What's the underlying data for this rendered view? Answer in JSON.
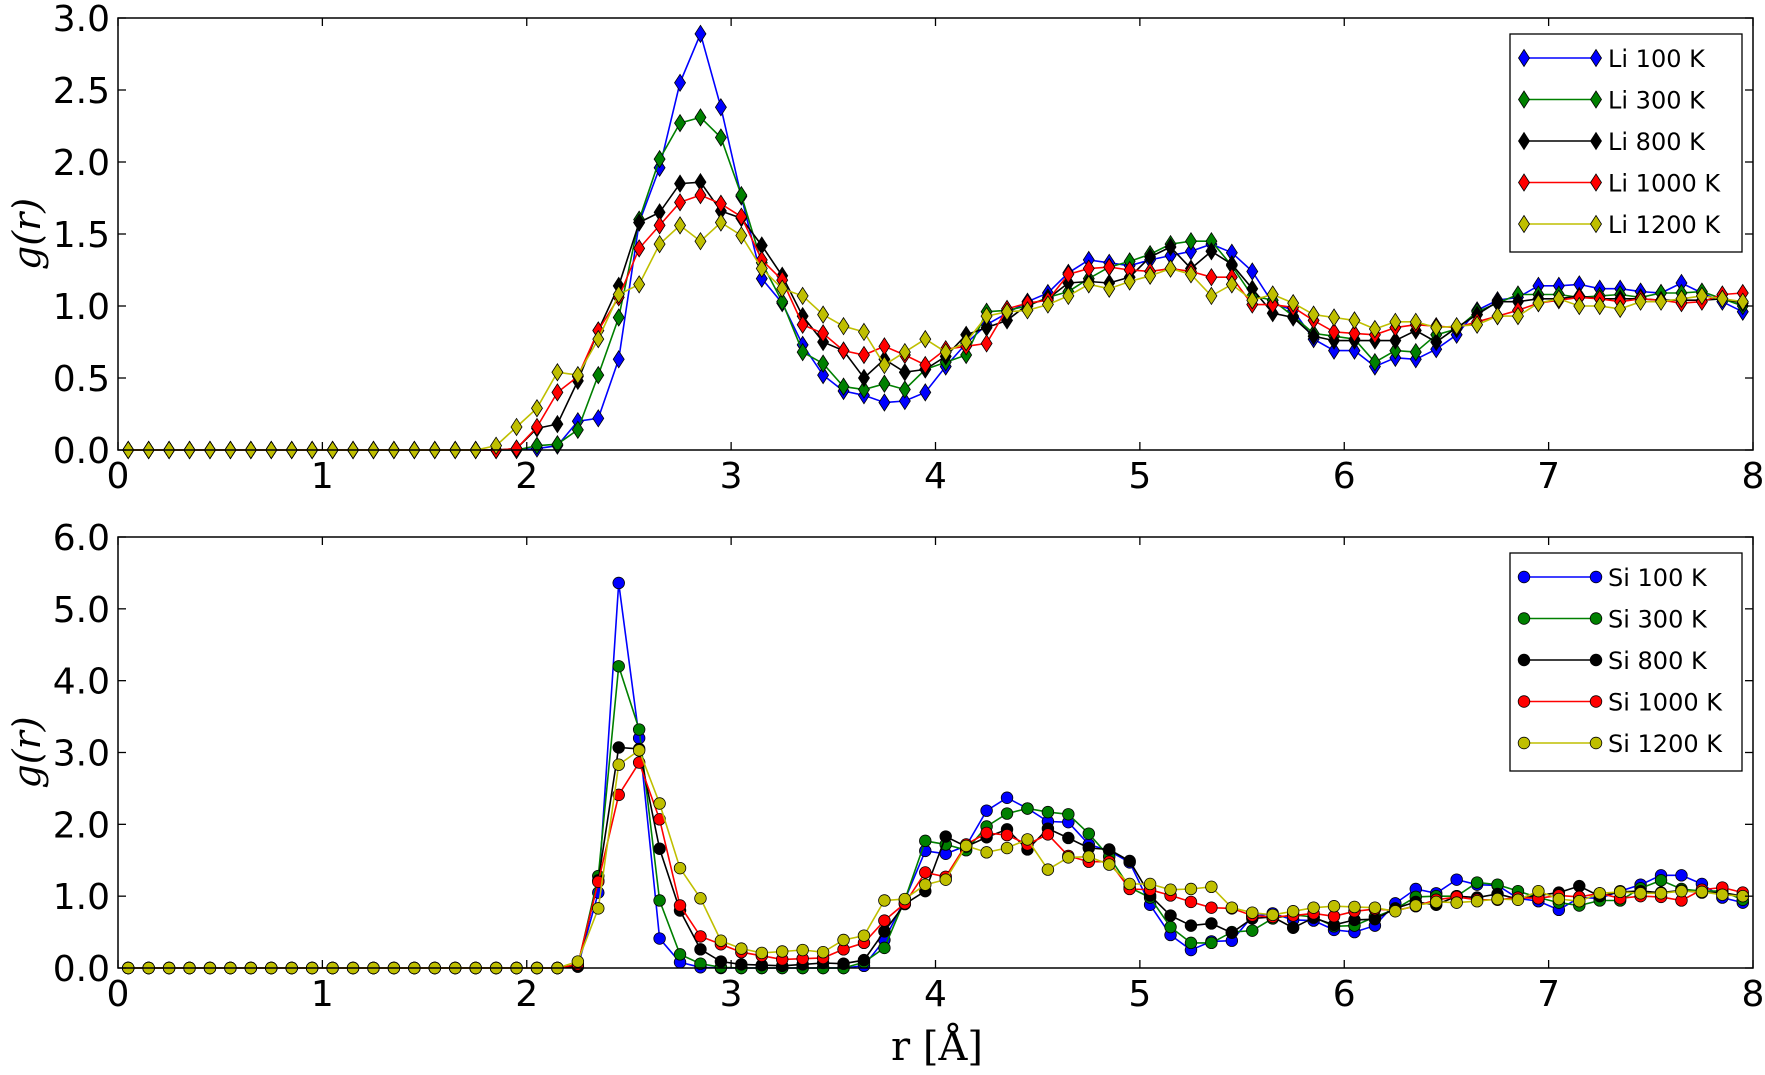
{
  "chart_data": [
    {
      "type": "line",
      "marker": "diamond",
      "xlabel": "",
      "ylabel": "g(r)",
      "xlim": [
        0,
        8
      ],
      "ylim": [
        0,
        3.0
      ],
      "xticks": [
        "0",
        "1",
        "2",
        "3",
        "4",
        "5",
        "6",
        "7",
        "8"
      ],
      "yticks": [
        "0.0",
        "0.5",
        "1.0",
        "1.5",
        "2.0",
        "2.5",
        "3.0"
      ],
      "grid": false,
      "legend_position": "top-right",
      "x": [
        0.05,
        0.15,
        0.25,
        0.35,
        0.45,
        0.55,
        0.65,
        0.75,
        0.85,
        0.95,
        1.05,
        1.15,
        1.25,
        1.35,
        1.45,
        1.55,
        1.65,
        1.75,
        1.85,
        1.95,
        2.05,
        2.15,
        2.25,
        2.35,
        2.45,
        2.55,
        2.65,
        2.75,
        2.85,
        2.95,
        3.05,
        3.15,
        3.25,
        3.35,
        3.45,
        3.55,
        3.65,
        3.75,
        3.85,
        3.95,
        4.05,
        4.15,
        4.25,
        4.35,
        4.45,
        4.55,
        4.65,
        4.75,
        4.85,
        4.95,
        5.05,
        5.15,
        5.25,
        5.35,
        5.45,
        5.55,
        5.65,
        5.75,
        5.85,
        5.95,
        6.05,
        6.15,
        6.25,
        6.35,
        6.45,
        6.55,
        6.65,
        6.75,
        6.85,
        6.95,
        7.05,
        7.15,
        7.25,
        7.35,
        7.45,
        7.55,
        7.65,
        7.75,
        7.85,
        7.95
      ],
      "series": [
        {
          "name": "Li 100 K",
          "color": "#0000ff",
          "values": [
            0,
            0,
            0,
            0,
            0,
            0,
            0,
            0,
            0,
            0,
            0,
            0,
            0,
            0,
            0,
            0,
            0,
            0,
            0,
            0,
            0.01,
            0.03,
            0.2,
            0.22,
            0.63,
            1.58,
            1.96,
            2.55,
            2.89,
            2.38,
            1.76,
            1.19,
            1.02,
            0.73,
            0.52,
            0.41,
            0.38,
            0.33,
            0.34,
            0.4,
            0.58,
            0.74,
            0.87,
            0.95,
            1.03,
            1.09,
            1.23,
            1.32,
            1.3,
            1.28,
            1.32,
            1.35,
            1.38,
            1.43,
            1.37,
            1.24,
            1.02,
            0.97,
            0.77,
            0.69,
            0.69,
            0.58,
            0.64,
            0.63,
            0.7,
            0.8,
            0.97,
            1.04,
            1.06,
            1.14,
            1.14,
            1.15,
            1.12,
            1.12,
            1.1,
            1.09,
            1.16,
            1.09,
            1.03,
            0.96
          ]
        },
        {
          "name": "Li 300 K",
          "color": "#008000",
          "values": [
            0,
            0,
            0,
            0,
            0,
            0,
            0,
            0,
            0,
            0,
            0,
            0,
            0,
            0,
            0,
            0,
            0,
            0,
            0,
            0,
            0.03,
            0.04,
            0.14,
            0.52,
            0.92,
            1.6,
            2.02,
            2.27,
            2.31,
            2.17,
            1.77,
            1.3,
            1.03,
            0.68,
            0.6,
            0.44,
            0.42,
            0.46,
            0.42,
            0.56,
            0.61,
            0.66,
            0.96,
            0.97,
            1.0,
            1.06,
            1.1,
            1.19,
            1.27,
            1.31,
            1.36,
            1.43,
            1.45,
            1.45,
            1.28,
            1.07,
            1.04,
            0.93,
            0.81,
            0.79,
            0.77,
            0.61,
            0.69,
            0.68,
            0.8,
            0.84,
            0.96,
            1.02,
            1.08,
            1.08,
            1.08,
            1.06,
            1.07,
            1.08,
            1.06,
            1.09,
            1.09,
            1.1,
            1.05,
            1.0
          ]
        },
        {
          "name": "Li 800 K",
          "color": "#000000",
          "values": [
            0,
            0,
            0,
            0,
            0,
            0,
            0,
            0,
            0,
            0,
            0,
            0,
            0,
            0,
            0,
            0,
            0,
            0,
            0,
            0.01,
            0.15,
            0.18,
            0.48,
            0.83,
            1.14,
            1.58,
            1.65,
            1.85,
            1.86,
            1.66,
            1.61,
            1.42,
            1.21,
            0.93,
            0.75,
            0.69,
            0.5,
            0.63,
            0.54,
            0.56,
            0.65,
            0.8,
            0.85,
            0.9,
            1.01,
            1.05,
            1.16,
            1.17,
            1.16,
            1.2,
            1.34,
            1.41,
            1.26,
            1.38,
            1.29,
            1.12,
            0.95,
            0.92,
            0.79,
            0.76,
            0.76,
            0.76,
            0.76,
            0.83,
            0.75,
            0.85,
            0.94,
            1.03,
            1.03,
            1.05,
            1.05,
            1.07,
            1.05,
            1.05,
            1.05,
            1.04,
            1.04,
            1.04,
            1.05,
            1.02
          ]
        },
        {
          "name": "Li 1000 K",
          "color": "#ff0000",
          "values": [
            0,
            0,
            0,
            0,
            0,
            0,
            0,
            0,
            0,
            0,
            0,
            0,
            0,
            0,
            0,
            0,
            0,
            0,
            0,
            0.01,
            0.16,
            0.4,
            0.51,
            0.83,
            1.06,
            1.4,
            1.56,
            1.72,
            1.77,
            1.71,
            1.62,
            1.32,
            1.18,
            0.87,
            0.81,
            0.69,
            0.66,
            0.72,
            0.66,
            0.59,
            0.7,
            0.72,
            0.74,
            0.98,
            1.02,
            1.04,
            1.22,
            1.26,
            1.27,
            1.25,
            1.24,
            1.26,
            1.24,
            1.2,
            1.2,
            1.01,
            1.01,
            0.99,
            0.9,
            0.82,
            0.81,
            0.8,
            0.85,
            0.87,
            0.86,
            0.85,
            0.89,
            0.93,
            0.97,
            1.02,
            1.04,
            1.06,
            1.05,
            1.03,
            1.05,
            1.04,
            1.02,
            1.03,
            1.08,
            1.09
          ]
        },
        {
          "name": "Li 1200 K",
          "color": "#bfbf00",
          "values": [
            0,
            0,
            0,
            0,
            0,
            0,
            0,
            0,
            0,
            0,
            0,
            0,
            0,
            0,
            0,
            0,
            0,
            0,
            0.03,
            0.16,
            0.29,
            0.54,
            0.52,
            0.77,
            1.08,
            1.15,
            1.43,
            1.56,
            1.45,
            1.58,
            1.49,
            1.26,
            1.12,
            1.07,
            0.94,
            0.86,
            0.82,
            0.59,
            0.68,
            0.77,
            0.68,
            0.75,
            0.93,
            0.96,
            0.97,
            1.01,
            1.07,
            1.15,
            1.12,
            1.17,
            1.21,
            1.26,
            1.22,
            1.07,
            1.15,
            1.04,
            1.08,
            1.02,
            0.94,
            0.92,
            0.9,
            0.84,
            0.89,
            0.89,
            0.85,
            0.86,
            0.87,
            0.93,
            0.93,
            1.02,
            1.05,
            1.0,
            1.0,
            0.98,
            1.03,
            1.03,
            1.05,
            1.07,
            1.05,
            1.03
          ]
        }
      ]
    },
    {
      "type": "line",
      "marker": "circle",
      "xlabel": "r [Å]",
      "ylabel": "g(r)",
      "xlim": [
        0,
        8
      ],
      "ylim": [
        0,
        6.0
      ],
      "xticks": [
        "0",
        "1",
        "2",
        "3",
        "4",
        "5",
        "6",
        "7",
        "8"
      ],
      "yticks": [
        "0.0",
        "1.0",
        "2.0",
        "3.0",
        "4.0",
        "5.0",
        "6.0"
      ],
      "grid": false,
      "legend_position": "top-right",
      "x": [
        0.05,
        0.15,
        0.25,
        0.35,
        0.45,
        0.55,
        0.65,
        0.75,
        0.85,
        0.95,
        1.05,
        1.15,
        1.25,
        1.35,
        1.45,
        1.55,
        1.65,
        1.75,
        1.85,
        1.95,
        2.05,
        2.15,
        2.25,
        2.35,
        2.45,
        2.55,
        2.65,
        2.75,
        2.85,
        2.95,
        3.05,
        3.15,
        3.25,
        3.35,
        3.45,
        3.55,
        3.65,
        3.75,
        3.85,
        3.95,
        4.05,
        4.15,
        4.25,
        4.35,
        4.45,
        4.55,
        4.65,
        4.75,
        4.85,
        4.95,
        5.05,
        5.15,
        5.25,
        5.35,
        5.45,
        5.55,
        5.65,
        5.75,
        5.85,
        5.95,
        6.05,
        6.15,
        6.25,
        6.35,
        6.45,
        6.55,
        6.65,
        6.75,
        6.85,
        6.95,
        7.05,
        7.15,
        7.25,
        7.35,
        7.45,
        7.55,
        7.65,
        7.75,
        7.85,
        7.95
      ],
      "series": [
        {
          "name": "Si 100 K",
          "color": "#0000ff",
          "values": [
            0,
            0,
            0,
            0,
            0,
            0,
            0,
            0,
            0,
            0,
            0,
            0,
            0,
            0,
            0,
            0,
            0,
            0,
            0,
            0,
            0,
            0,
            0.02,
            1.05,
            5.36,
            3.2,
            0.41,
            0.08,
            0.01,
            0,
            0,
            0,
            0,
            0,
            0,
            0,
            0.03,
            0.39,
            0.95,
            1.63,
            1.59,
            1.7,
            2.19,
            2.37,
            2.22,
            2.04,
            2.03,
            1.72,
            1.63,
            1.47,
            0.88,
            0.46,
            0.25,
            0.37,
            0.38,
            0.72,
            0.76,
            0.67,
            0.66,
            0.53,
            0.5,
            0.59,
            0.9,
            1.1,
            1.04,
            1.23,
            1.16,
            1.15,
            0.97,
            0.93,
            0.81,
            0.98,
            0.97,
            1.07,
            1.16,
            1.29,
            1.29,
            1.17,
            0.98,
            0.91
          ]
        },
        {
          "name": "Si 300 K",
          "color": "#008000",
          "values": [
            0,
            0,
            0,
            0,
            0,
            0,
            0,
            0,
            0,
            0,
            0,
            0,
            0,
            0,
            0,
            0,
            0,
            0,
            0,
            0,
            0,
            0,
            0.03,
            1.28,
            4.2,
            3.32,
            0.94,
            0.19,
            0.06,
            0.01,
            0,
            0,
            0,
            0,
            0,
            0,
            0.08,
            0.28,
            0.95,
            1.77,
            1.72,
            1.64,
            1.97,
            2.15,
            2.22,
            2.17,
            2.14,
            1.87,
            1.55,
            1.12,
            0.98,
            0.57,
            0.35,
            0.35,
            0.5,
            0.52,
            0.69,
            0.74,
            0.71,
            0.58,
            0.59,
            0.71,
            0.82,
            0.99,
            1.0,
            1.0,
            1.19,
            1.16,
            1.07,
            0.98,
            0.91,
            0.87,
            0.94,
            0.94,
            1.11,
            1.22,
            1.1,
            1.07,
            1.07,
            0.95
          ]
        },
        {
          "name": "Si 800 K",
          "color": "#000000",
          "values": [
            0,
            0,
            0,
            0,
            0,
            0,
            0,
            0,
            0,
            0,
            0,
            0,
            0,
            0,
            0,
            0,
            0,
            0,
            0,
            0,
            0,
            0,
            0.02,
            1.22,
            3.07,
            3.05,
            1.66,
            0.8,
            0.26,
            0.09,
            0.05,
            0.04,
            0.03,
            0.05,
            0.07,
            0.06,
            0.11,
            0.51,
            0.89,
            1.07,
            1.83,
            1.69,
            1.82,
            1.93,
            1.65,
            1.94,
            1.81,
            1.67,
            1.65,
            1.49,
            1.01,
            0.73,
            0.59,
            0.62,
            0.49,
            0.69,
            0.71,
            0.56,
            0.7,
            0.6,
            0.67,
            0.68,
            0.83,
            0.92,
            0.88,
            1.0,
            0.98,
            1.03,
            0.96,
            1.01,
            1.05,
            1.14,
            1.0,
            1.06,
            1.07,
            1.05,
            1.08,
            1.05,
            1.05,
            1.0
          ]
        },
        {
          "name": "Si 1000 K",
          "color": "#ff0000",
          "values": [
            0,
            0,
            0,
            0,
            0,
            0,
            0,
            0,
            0,
            0,
            0,
            0,
            0,
            0,
            0,
            0,
            0,
            0,
            0,
            0,
            0,
            0,
            0.05,
            1.2,
            2.41,
            2.86,
            2.07,
            0.87,
            0.44,
            0.33,
            0.22,
            0.17,
            0.12,
            0.13,
            0.14,
            0.26,
            0.35,
            0.66,
            0.9,
            1.33,
            1.27,
            1.72,
            1.88,
            1.85,
            1.72,
            1.86,
            1.56,
            1.48,
            1.48,
            1.1,
            1.09,
            1.01,
            0.92,
            0.84,
            0.83,
            0.73,
            0.71,
            0.73,
            0.76,
            0.72,
            0.79,
            0.82,
            0.8,
            0.86,
            0.95,
            0.99,
            0.95,
            0.95,
            0.98,
            0.97,
            1.01,
            0.99,
            1.04,
            0.97,
            1.0,
            0.99,
            0.94,
            1.09,
            1.12,
            1.05
          ]
        },
        {
          "name": "Si 1200 K",
          "color": "#bfbf00",
          "values": [
            0,
            0,
            0,
            0,
            0,
            0,
            0,
            0,
            0,
            0,
            0,
            0,
            0,
            0,
            0,
            0,
            0,
            0,
            0,
            0,
            0,
            0,
            0.09,
            0.83,
            2.83,
            3.03,
            2.29,
            1.39,
            0.97,
            0.38,
            0.27,
            0.21,
            0.23,
            0.25,
            0.22,
            0.39,
            0.45,
            0.94,
            0.96,
            1.16,
            1.23,
            1.7,
            1.61,
            1.67,
            1.79,
            1.37,
            1.54,
            1.55,
            1.44,
            1.17,
            1.17,
            1.09,
            1.1,
            1.13,
            0.84,
            0.77,
            0.74,
            0.79,
            0.84,
            0.86,
            0.85,
            0.84,
            0.79,
            0.87,
            0.92,
            0.91,
            0.93,
            0.96,
            0.95,
            1.07,
            0.96,
            0.93,
            1.04,
            1.06,
            1.04,
            1.04,
            1.07,
            1.06,
            1.02,
            1.0
          ]
        }
      ]
    }
  ]
}
